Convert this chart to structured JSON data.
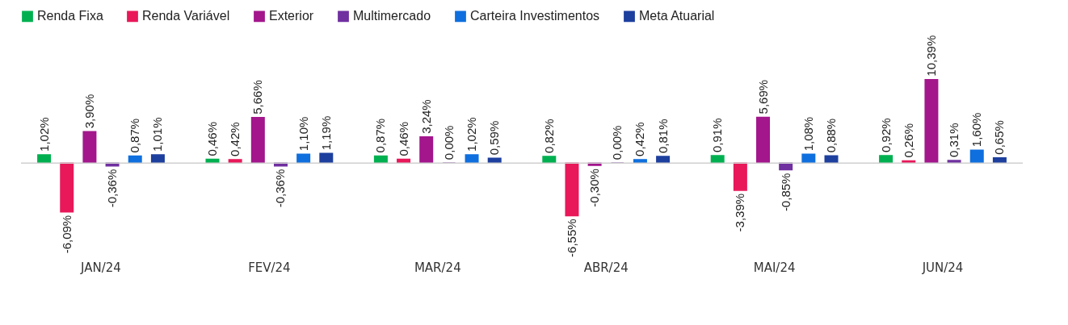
{
  "chart_data": {
    "type": "bar",
    "categories": [
      "JAN/24",
      "FEV/24",
      "MAR/24",
      "ABR/24",
      "MAI/24",
      "JUN/24"
    ],
    "legend": "top",
    "series": [
      {
        "name": "Renda Fixa",
        "color": "#00b050",
        "values": [
          1.02,
          0.46,
          0.87,
          0.82,
          0.91,
          0.92
        ],
        "value_labels": [
          "1,02%",
          "0,46%",
          "0,87%",
          "0,82%",
          "0,91%",
          "0,92%"
        ]
      },
      {
        "name": "Renda Variável",
        "color": "#e8185a",
        "values": [
          -6.09,
          0.42,
          0.46,
          -6.55,
          -3.39,
          0.26
        ],
        "value_labels": [
          "-6,09%",
          "0,42%",
          "0,46%",
          "-6,55%",
          "-3,39%",
          "0,26%"
        ]
      },
      {
        "name": "Exterior",
        "color": "#a3168c",
        "values": [
          3.9,
          5.66,
          3.24,
          -0.3,
          5.69,
          10.39
        ],
        "value_labels": [
          "3,90%",
          "5,66%",
          "3,24%",
          "-0,30%",
          "5,69%",
          "10,39%"
        ]
      },
      {
        "name": "Multimercado",
        "color": "#7030a0",
        "values": [
          -0.36,
          -0.36,
          0.0,
          0.0,
          -0.85,
          0.31
        ],
        "value_labels": [
          "-0,36%",
          "-0,36%",
          "0,00%",
          "0,00%",
          "-0,85%",
          "0,31%"
        ]
      },
      {
        "name": "Carteira Investimentos",
        "color": "#0f6fde",
        "values": [
          0.87,
          1.1,
          1.02,
          0.42,
          1.08,
          1.6
        ],
        "value_labels": [
          "0,87%",
          "1,10%",
          "1,02%",
          "0,42%",
          "1,08%",
          "1,60%"
        ]
      },
      {
        "name": "Meta Atuarial",
        "color": "#1d3f9e",
        "values": [
          1.01,
          1.19,
          0.59,
          0.81,
          0.88,
          0.65
        ],
        "value_labels": [
          "1,01%",
          "1,19%",
          "0,59%",
          "0,81%",
          "0,88%",
          "0,65%"
        ]
      }
    ]
  }
}
